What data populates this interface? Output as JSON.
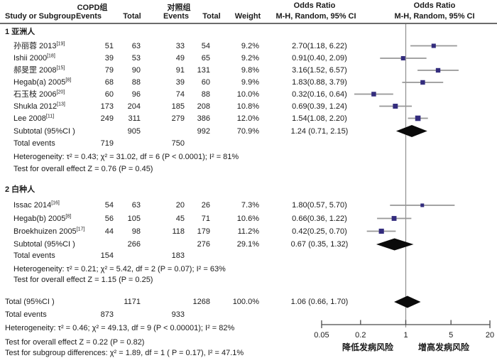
{
  "header": {
    "study_col": "Study or Subgroup",
    "copd_group": "COPD组",
    "control_group": "对照组",
    "events": "Events",
    "total": "Total",
    "weight": "Weight",
    "or_col": "Odds Ratio",
    "or_method": "M-H, Random, 95% CI",
    "plot_col": "Odds Ratio",
    "plot_method": "M-H, Random, 95% CI"
  },
  "colors": {
    "square": "#332c7d",
    "ci_line": "#979797",
    "diamond": "#0a0a0a",
    "axis_line": "#8f8f8f",
    "header_rule": "#3c3c3c",
    "text": "#1a1a1a"
  },
  "chart_data": {
    "type": "forest",
    "effect_measure": "Odds Ratio, M-H, Random, 95% CI",
    "axis": {
      "scale": "log",
      "ticks": [
        0.05,
        0.2,
        1,
        5,
        20
      ],
      "label_left": "降低发病风险",
      "label_right": "增高发病风险"
    },
    "groups": [
      {
        "label": "1 亚洲人",
        "studies": [
          {
            "study": "孙丽蓉 2013",
            "ref": "[19]",
            "ev1": 51,
            "tot1": 63,
            "ev2": 33,
            "tot2": 54,
            "weight": "9.2%",
            "w": 9.2,
            "or_text": "2.70(1.18, 6.22)",
            "or": 2.7,
            "lo": 1.18,
            "hi": 6.22
          },
          {
            "study": "Ishii 2000",
            "ref": "[18]",
            "ev1": 39,
            "tot1": 53,
            "ev2": 49,
            "tot2": 65,
            "weight": "9.2%",
            "w": 9.2,
            "or_text": "0.91(0.40, 2.09)",
            "or": 0.91,
            "lo": 0.4,
            "hi": 2.09
          },
          {
            "study": "郝旻罡 2008",
            "ref": "[15]",
            "ev1": 79,
            "tot1": 90,
            "ev2": 91,
            "tot2": 131,
            "weight": "9.8%",
            "w": 9.8,
            "or_text": "3.16(1.52, 6.57)",
            "or": 3.16,
            "lo": 1.52,
            "hi": 6.57
          },
          {
            "study": "Hegab(a) 2005",
            "ref": "[8]",
            "ev1": 68,
            "tot1": 88,
            "ev2": 39,
            "tot2": 60,
            "weight": "9.9%",
            "w": 9.9,
            "or_text": "1.83(0.88, 3.79)",
            "or": 1.83,
            "lo": 0.88,
            "hi": 3.79
          },
          {
            "study": "石玉枝 2006",
            "ref": "[20]",
            "ev1": 60,
            "tot1": 96,
            "ev2": 74,
            "tot2": 88,
            "weight": "10.0%",
            "w": 10.0,
            "or_text": "0.32(0.16, 0.64)",
            "or": 0.32,
            "lo": 0.16,
            "hi": 0.64
          },
          {
            "study": "Shukla 2012",
            "ref": "[13]",
            "ev1": 173,
            "tot1": 204,
            "ev2": 185,
            "tot2": 208,
            "weight": "10.8%",
            "w": 10.8,
            "or_text": "0.69(0.39, 1.24)",
            "or": 0.69,
            "lo": 0.39,
            "hi": 1.24
          },
          {
            "study": "Lee 2008",
            "ref": "[11]",
            "ev1": 249,
            "tot1": 311,
            "ev2": 279,
            "tot2": 386,
            "weight": "12.0%",
            "w": 12.0,
            "or_text": "1.54(1.08, 2.20)",
            "or": 1.54,
            "lo": 1.08,
            "hi": 2.2
          }
        ],
        "subtotal": {
          "label": "Subtotal (95%CI )",
          "tot1": 905,
          "tot2": 992,
          "weight": "70.9%",
          "or_text": "1.24 (0.71, 2.15)",
          "or": 1.24,
          "lo": 0.71,
          "hi": 2.15
        },
        "total_events": {
          "label": "Total events",
          "ev1": 719,
          "ev2": 750
        },
        "notes": [
          "Heterogeneity: τ² = 0.43;  χ² = 31.02, df = 6 (P < 0.0001); I² = 81%",
          "Test for overall effect Z = 0.76 (P = 0.45)"
        ]
      },
      {
        "label": "2 白种人",
        "studies": [
          {
            "study": "Issac 2014",
            "ref": "[16]",
            "ev1": 54,
            "tot1": 63,
            "ev2": 20,
            "tot2": 26,
            "weight": "7.3%",
            "w": 7.3,
            "or_text": "1.80(0.57, 5.70)",
            "or": 1.8,
            "lo": 0.57,
            "hi": 5.7
          },
          {
            "study": "Hegab(b) 2005",
            "ref": "[8]",
            "ev1": 56,
            "tot1": 105,
            "ev2": 45,
            "tot2": 71,
            "weight": "10.6%",
            "w": 10.6,
            "or_text": "0.66(0.36, 1.22)",
            "or": 0.66,
            "lo": 0.36,
            "hi": 1.22
          },
          {
            "study": "Broekhuizen 2005",
            "ref": "[17]",
            "ev1": 44,
            "tot1": 98,
            "ev2": 118,
            "tot2": 179,
            "weight": "11.2%",
            "w": 11.2,
            "or_text": "0.42(0.25, 0.70)",
            "or": 0.42,
            "lo": 0.25,
            "hi": 0.7
          }
        ],
        "subtotal": {
          "label": "Subtotal (95%CI )",
          "tot1": 266,
          "tot2": 276,
          "weight": "29.1%",
          "or_text": "0.67 (0.35, 1.32)",
          "or": 0.67,
          "lo": 0.35,
          "hi": 1.32
        },
        "total_events": {
          "label": "Total events",
          "ev1": 154,
          "ev2": 183
        },
        "notes": [
          "Heterogeneity: τ² = 0.21;  χ² = 5.42, df = 2 (P = 0.07); I² = 63%",
          "Test for overall effect Z = 1.15 (P = 0.25)"
        ]
      }
    ],
    "total": {
      "label": "Total (95%CI )",
      "tot1": 1171,
      "tot2": 1268,
      "weight": "100.0%",
      "or_text": "1.06 (0.66, 1.70)",
      "or": 1.06,
      "lo": 0.66,
      "hi": 1.7
    },
    "total_events": {
      "label": "Total events",
      "ev1": 873,
      "ev2": 933
    },
    "notes": [
      "Heterogeneity: τ² = 0.46;  χ² = 49.13, df = 9 (P < 0.00001); I² = 82%",
      "Test for overall effect Z = 0.22 (P = 0.82)",
      "Test for subgroup differences: χ² = 1.89, df = 1 ( P = 0.17), I² = 47.1%"
    ]
  }
}
